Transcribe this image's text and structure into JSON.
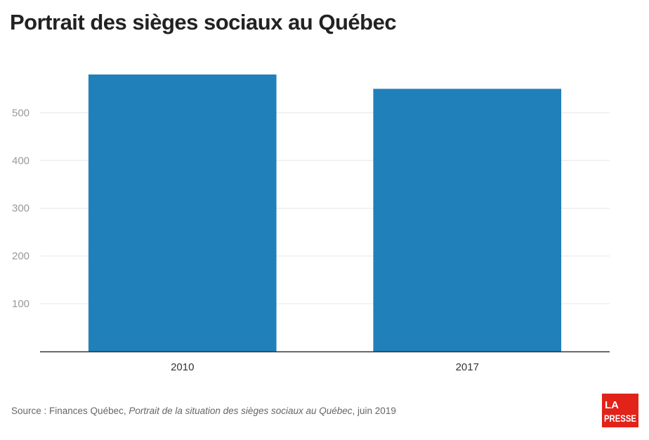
{
  "title": "Portrait des sièges sociaux au Québec",
  "source": {
    "prefix": "Source : Finances Québec, ",
    "italic": "Portrait de la situation des sièges sociaux au Québec",
    "suffix": ", juin 2019"
  },
  "logo": {
    "line1": "LA",
    "line2": "PRESSE",
    "color": "#e2231a"
  },
  "colors": {
    "bar": "#2080b9",
    "grid": "#e6e6e6",
    "axis": "#333333",
    "tick_label": "#999999"
  },
  "chart_data": {
    "type": "bar",
    "title": "Portrait des sièges sociaux au Québec",
    "categories": [
      "2010",
      "2017"
    ],
    "values": [
      580,
      550
    ],
    "xlabel": "",
    "ylabel": "",
    "ylim": [
      0,
      580
    ],
    "yticks": [
      100,
      200,
      300,
      400,
      500
    ],
    "grid": true,
    "legend": "none"
  }
}
